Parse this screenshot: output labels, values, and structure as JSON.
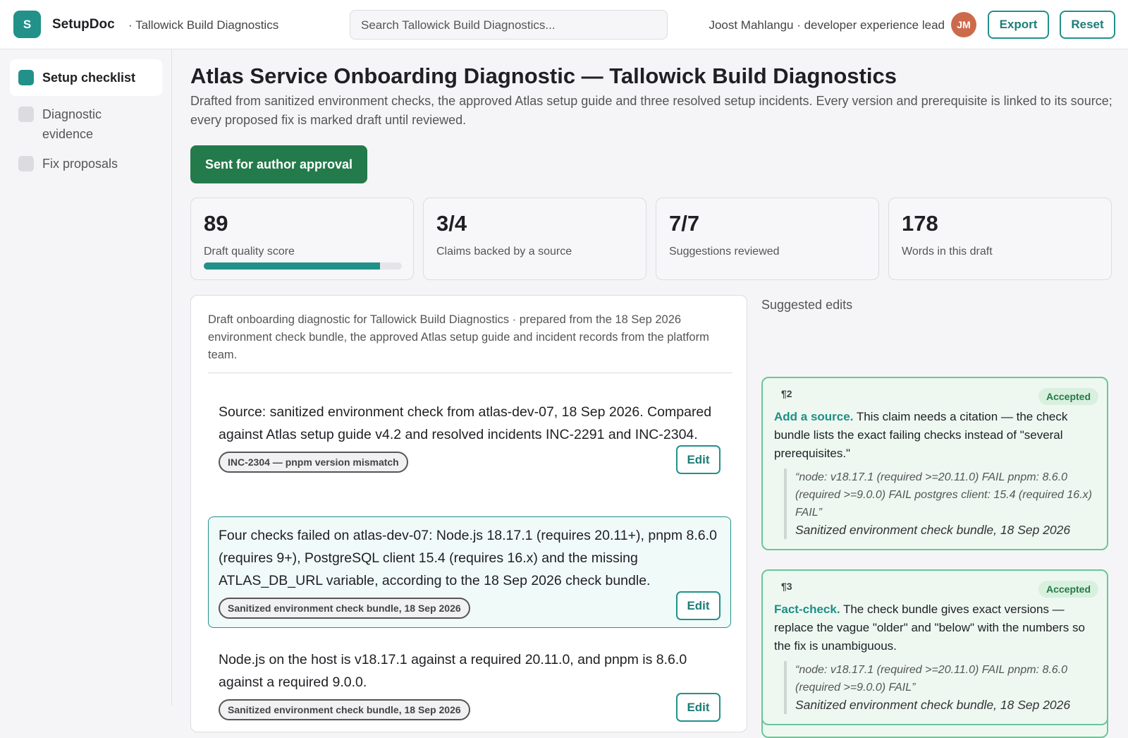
{
  "header": {
    "logo": "S",
    "app": "SetupDoc",
    "workspace": "· Tallowick Build Diagnostics",
    "search_placeholder": "Search Tallowick Build Diagnostics...",
    "user": "Joost Mahlangu · developer experience lead",
    "avatar": "JM",
    "actions": [
      "Export",
      "Reset"
    ]
  },
  "sidebar": {
    "items": [
      {
        "label": "Setup checklist",
        "active": true
      },
      {
        "label": "Diagnostic evidence",
        "active": false
      },
      {
        "label": "Fix proposals",
        "active": false
      }
    ]
  },
  "page": {
    "title": "Atlas Service Onboarding Diagnostic — Tallowick Build Diagnostics",
    "description": "Drafted from sanitized environment checks, the approved Atlas setup guide and three resolved setup incidents. Every version and prerequisite is linked to its source; every proposed fix is marked draft until reviewed.",
    "status_button": "Sent for author approval"
  },
  "stats": [
    {
      "value": 89,
      "label": "Draft quality score",
      "progress": true
    },
    {
      "value": "3/4",
      "label": "Claims backed by a source",
      "progress": false
    },
    {
      "value": "7/7",
      "label": "Suggestions reviewed",
      "progress": false
    },
    {
      "value": 178,
      "label": "Words in this draft",
      "progress": false
    }
  ],
  "document": {
    "intro": "Draft onboarding diagnostic for Tallowick Build Diagnostics · prepared from the 18 Sep 2026 environment check bundle, the approved Atlas setup guide and incident records from the platform team.",
    "paragraphs": [
      {
        "text": "Source: sanitized environment check from atlas-dev-07, 18 Sep 2026. Compared against Atlas setup guide v4.2 and resolved incidents INC-2291 and INC-2304.",
        "source": "INC-2304 — pnpm version mismatch",
        "action": "Edit",
        "highlighted": false
      },
      {
        "text": "Four checks failed on atlas-dev-07: Node.js 18.17.1 (requires 20.11+), pnpm 8.6.0 (requires 9+), PostgreSQL client 15.4 (requires 16.x) and the missing ATLAS_DB_URL variable, according to the 18 Sep 2026 check bundle.",
        "source": "Sanitized environment check bundle, 18 Sep 2026",
        "action": "Edit",
        "highlighted": true
      },
      {
        "text": "Node.js on the host is v18.17.1 against a required 20.11.0, and pnpm is 8.6.0 against a required 9.0.0.",
        "source": "Sanitized environment check bundle, 18 Sep 2026",
        "action": "Edit",
        "highlighted": false
      }
    ]
  },
  "suggestions": {
    "heading": "Suggested edits",
    "items": [
      {
        "paragraph": "¶2",
        "status": "Accepted",
        "kind": "Add a source.",
        "text": "This claim needs a citation — the check bundle lists the exact failing checks instead of \"several prerequisites.\"",
        "quote": "“node: v18.17.1 (required >=20.11.0) FAIL pnpm: 8.6.0 (required >=9.0.0) FAIL postgres client: 15.4 (required 16.x) FAIL”",
        "source": "Sanitized environment check bundle, 18 Sep 2026"
      },
      {
        "paragraph": "¶3",
        "status": "Accepted",
        "kind": "Fact-check.",
        "text": "The check bundle gives exact versions — replace the vague \"older\" and \"below\" with the numbers so the fix is unambiguous.",
        "quote": "“node: v18.17.1 (required >=20.11.0) FAIL pnpm: 8.6.0 (required >=9.0.0) FAIL”",
        "source": "Sanitized environment check bundle, 18 Sep 2026"
      }
    ]
  }
}
